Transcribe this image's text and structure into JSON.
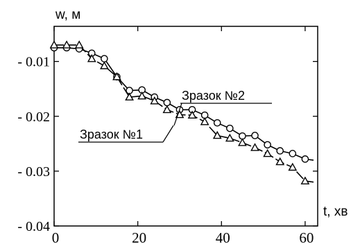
{
  "chart_data": {
    "type": "line",
    "ylabel": "w, м",
    "xlabel": "t, хв",
    "xlim": [
      0,
      63
    ],
    "ylim": [
      -0.04,
      -0.0036
    ],
    "x_ticks": [
      "0",
      "20",
      "40",
      "60"
    ],
    "y_ticks": [
      "- 0.01",
      "- 0.02",
      "- 0.03",
      "- 0.04"
    ],
    "y_tick_values": [
      -0.01,
      -0.02,
      -0.03,
      -0.04
    ],
    "x_tick_values": [
      0,
      20,
      40,
      60
    ],
    "grid": false,
    "series": [
      {
        "name": "Зразок №2",
        "marker": "circle",
        "x": [
          0,
          3,
          6,
          9,
          12,
          15,
          18,
          21,
          24,
          27,
          30,
          33,
          36,
          39,
          42,
          45,
          48,
          51,
          54,
          57,
          60,
          62
        ],
        "y": [
          -0.0075,
          -0.0075,
          -0.0077,
          -0.0085,
          -0.0095,
          -0.0128,
          -0.0153,
          -0.0152,
          -0.0165,
          -0.0175,
          -0.0188,
          -0.0188,
          -0.0198,
          -0.0212,
          -0.0222,
          -0.0236,
          -0.0235,
          -0.0252,
          -0.0263,
          -0.0268,
          -0.0278,
          -0.028
        ]
      },
      {
        "name": "Зразок №1",
        "marker": "triangle",
        "x": [
          0,
          3,
          6,
          9,
          12,
          15,
          18,
          21,
          24,
          27,
          30,
          33,
          36,
          39,
          42,
          45,
          48,
          51,
          54,
          57,
          60,
          62
        ],
        "y": [
          -0.007,
          -0.007,
          -0.007,
          -0.0095,
          -0.0108,
          -0.0128,
          -0.0165,
          -0.0163,
          -0.0172,
          -0.0188,
          -0.0197,
          -0.0198,
          -0.021,
          -0.0235,
          -0.024,
          -0.0248,
          -0.0257,
          -0.0268,
          -0.0283,
          -0.0293,
          -0.0318,
          -0.032
        ]
      }
    ],
    "annotations": [
      {
        "text": "Зразок №2",
        "series": "Зразок №2"
      },
      {
        "text": "Зразок №1",
        "series": "Зразок №1"
      }
    ]
  }
}
